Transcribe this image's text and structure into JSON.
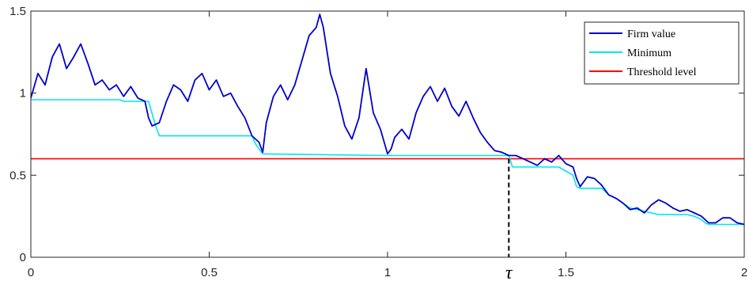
{
  "chart_data": {
    "type": "line",
    "title": "",
    "xlabel": "",
    "ylabel": "",
    "xlim": [
      0,
      2
    ],
    "ylim": [
      0,
      1.5
    ],
    "grid": false,
    "legend_position": "top-right",
    "x_ticks": [
      {
        "value": 0,
        "label": "0"
      },
      {
        "value": 0.5,
        "label": "0.5"
      },
      {
        "value": 1,
        "label": "1"
      },
      {
        "value": 1.5,
        "label": "1.5"
      },
      {
        "value": 2,
        "label": "2"
      }
    ],
    "y_ticks": [
      {
        "value": 0,
        "label": "0"
      },
      {
        "value": 0.5,
        "label": "0.5"
      },
      {
        "value": 1,
        "label": "1"
      },
      {
        "value": 1.5,
        "label": "1.5"
      }
    ],
    "tau": {
      "x": 1.34,
      "label": "τ"
    },
    "series": [
      {
        "name": "Firm value",
        "color": "#0000cc",
        "x": [
          0,
          0.02,
          0.04,
          0.06,
          0.08,
          0.1,
          0.12,
          0.14,
          0.16,
          0.18,
          0.2,
          0.22,
          0.24,
          0.26,
          0.28,
          0.3,
          0.32,
          0.33,
          0.34,
          0.36,
          0.38,
          0.4,
          0.42,
          0.44,
          0.46,
          0.48,
          0.5,
          0.52,
          0.54,
          0.56,
          0.58,
          0.6,
          0.62,
          0.64,
          0.65,
          0.66,
          0.68,
          0.7,
          0.72,
          0.74,
          0.76,
          0.78,
          0.8,
          0.81,
          0.82,
          0.84,
          0.86,
          0.88,
          0.9,
          0.92,
          0.94,
          0.96,
          0.98,
          1.0,
          1.01,
          1.02,
          1.04,
          1.06,
          1.08,
          1.1,
          1.12,
          1.14,
          1.16,
          1.18,
          1.2,
          1.22,
          1.24,
          1.26,
          1.28,
          1.3,
          1.32,
          1.34,
          1.36,
          1.38,
          1.4,
          1.42,
          1.44,
          1.46,
          1.48,
          1.5,
          1.52,
          1.53,
          1.54,
          1.56,
          1.58,
          1.6,
          1.62,
          1.64,
          1.66,
          1.68,
          1.7,
          1.72,
          1.74,
          1.76,
          1.78,
          1.8,
          1.82,
          1.84,
          1.86,
          1.88,
          1.9,
          1.92,
          1.94,
          1.96,
          1.98,
          2.0
        ],
        "y": [
          0.97,
          1.12,
          1.05,
          1.22,
          1.3,
          1.15,
          1.22,
          1.3,
          1.18,
          1.05,
          1.08,
          1.02,
          1.05,
          0.98,
          1.04,
          0.97,
          0.95,
          0.85,
          0.8,
          0.82,
          0.95,
          1.05,
          1.02,
          0.95,
          1.08,
          1.12,
          1.02,
          1.08,
          0.98,
          1.0,
          0.92,
          0.85,
          0.74,
          0.7,
          0.64,
          0.82,
          0.98,
          1.05,
          0.96,
          1.05,
          1.2,
          1.35,
          1.4,
          1.48,
          1.4,
          1.12,
          0.98,
          0.8,
          0.72,
          0.85,
          1.15,
          0.88,
          0.78,
          0.63,
          0.66,
          0.73,
          0.78,
          0.72,
          0.88,
          0.98,
          1.04,
          0.95,
          1.03,
          0.92,
          0.86,
          0.95,
          0.85,
          0.76,
          0.7,
          0.65,
          0.64,
          0.62,
          0.62,
          0.6,
          0.58,
          0.56,
          0.6,
          0.58,
          0.62,
          0.57,
          0.55,
          0.48,
          0.43,
          0.49,
          0.48,
          0.44,
          0.38,
          0.36,
          0.33,
          0.29,
          0.3,
          0.27,
          0.32,
          0.35,
          0.33,
          0.3,
          0.28,
          0.29,
          0.27,
          0.25,
          0.21,
          0.21,
          0.24,
          0.24,
          0.21,
          0.2
        ]
      },
      {
        "name": "Minimum",
        "color": "#00e5ee",
        "x": [
          0,
          0.25,
          0.26,
          0.33,
          0.35,
          0.36,
          0.62,
          0.63,
          0.64,
          0.65,
          1.0,
          1.34,
          1.35,
          1.48,
          1.52,
          1.53,
          1.54,
          1.6,
          1.62,
          1.64,
          1.66,
          1.68,
          1.7,
          1.74,
          1.76,
          1.84,
          1.86,
          1.88,
          1.89,
          1.9,
          2.0
        ],
        "y": [
          0.96,
          0.96,
          0.95,
          0.95,
          0.8,
          0.74,
          0.74,
          0.69,
          0.66,
          0.63,
          0.62,
          0.62,
          0.55,
          0.55,
          0.5,
          0.43,
          0.42,
          0.42,
          0.38,
          0.36,
          0.33,
          0.3,
          0.29,
          0.27,
          0.26,
          0.26,
          0.25,
          0.23,
          0.21,
          0.2,
          0.2
        ]
      },
      {
        "name": "Threshold level",
        "color": "#ff0000",
        "x": [
          0,
          2
        ],
        "y": [
          0.6,
          0.6
        ]
      }
    ]
  }
}
